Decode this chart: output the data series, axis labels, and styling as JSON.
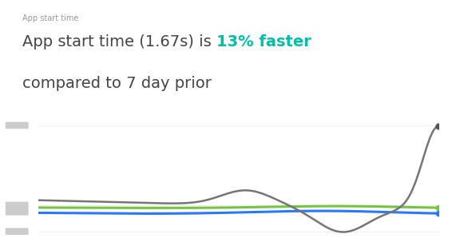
{
  "title_small": "App start time",
  "title_line1": "App start time (1.67s) is ",
  "title_highlight": "13% faster",
  "title_line2": "compared to 7 day prior",
  "bg_color": "#ffffff",
  "border_color": "#dddddd",
  "title_small_color": "#999999",
  "title_main_color": "#444444",
  "title_highlight_color": "#00BFA5",
  "gray_line_color": "#757575",
  "green_line_color": "#76C442",
  "blue_line_color": "#2979FF",
  "grid_color": "#eeeeee",
  "tick_rect_color": "#cccccc",
  "dot_color": "#555555"
}
